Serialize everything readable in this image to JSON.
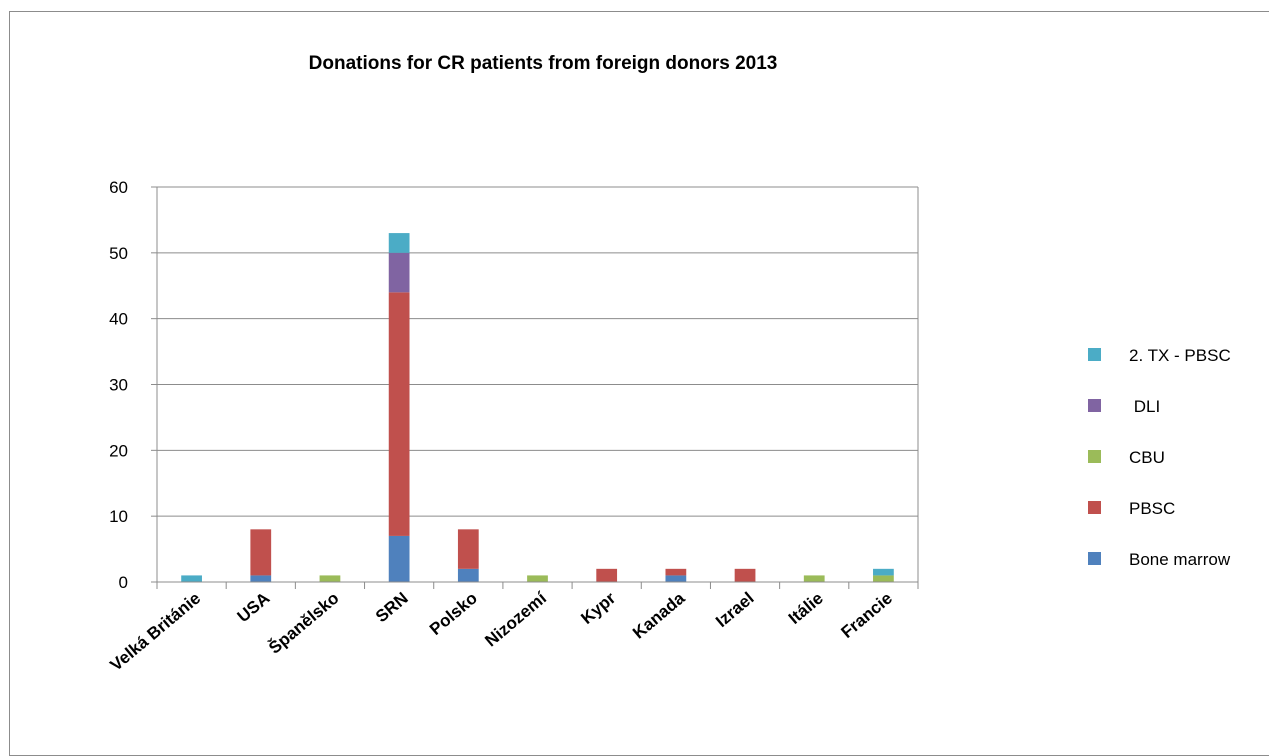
{
  "chart_data": {
    "type": "bar",
    "stacked": true,
    "title": "Donations for CR patients from foreign donors 2013",
    "xlabel": "",
    "ylabel": "",
    "ylim": [
      0,
      60
    ],
    "yticks": [
      0,
      10,
      20,
      30,
      40,
      50,
      60
    ],
    "grid": true,
    "legend_position": "right",
    "categories": [
      "Velká Británie",
      "USA",
      "Španělsko",
      "SRN",
      "Polsko",
      "Nizozemí",
      "Kypr",
      "Kanada",
      "Izrael",
      "Itálie",
      "Francie"
    ],
    "series": [
      {
        "name": "Bone marrow",
        "color": "#4f81bd",
        "values": [
          0,
          1,
          0,
          7,
          2,
          0,
          0,
          1,
          0,
          0,
          0
        ]
      },
      {
        "name": "PBSC",
        "color": "#c0504d",
        "values": [
          0,
          7,
          0,
          37,
          6,
          0,
          2,
          1,
          2,
          0,
          0
        ]
      },
      {
        "name": "CBU",
        "color": "#9bbb59",
        "values": [
          0,
          0,
          1,
          0,
          0,
          1,
          0,
          0,
          0,
          1,
          1
        ]
      },
      {
        "name": "DLI",
        "color": "#8064a2",
        "values": [
          0,
          0,
          0,
          6,
          0,
          0,
          0,
          0,
          0,
          0,
          0
        ]
      },
      {
        "name": "2. TX - PBSC",
        "color": "#4bacc6",
        "values": [
          1,
          0,
          0,
          3,
          0,
          0,
          0,
          0,
          0,
          0,
          1
        ]
      }
    ],
    "legend_order": [
      "2. TX - PBSC",
      " DLI",
      "CBU",
      "PBSC",
      "Bone marrow"
    ]
  }
}
